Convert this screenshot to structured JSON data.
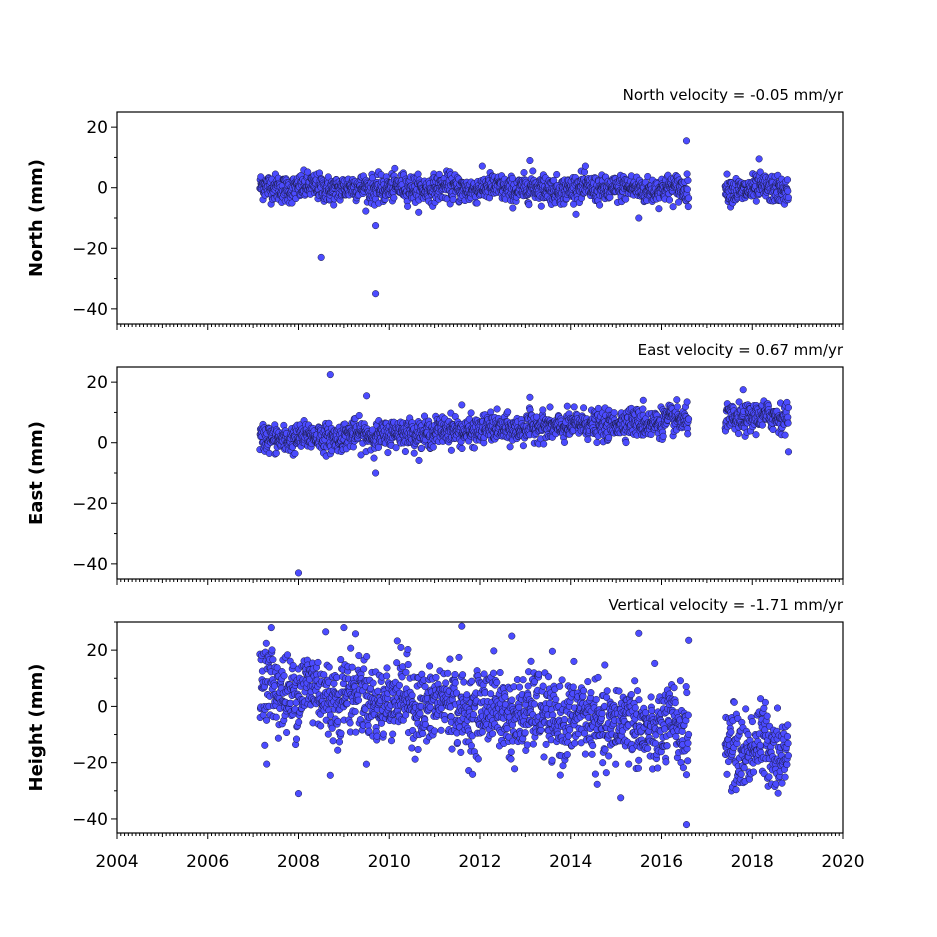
{
  "chart_data": {
    "type": "scatter",
    "x_range": [
      2004,
      2020
    ],
    "x_ticks": [
      "2004",
      "2006",
      "2008",
      "2010",
      "2012",
      "2014",
      "2016",
      "2018",
      "2020"
    ],
    "marker_color": "#4b4bff",
    "data_years": [
      2007.15,
      2018.8
    ],
    "data_gap": [
      2016.6,
      2017.4
    ],
    "panels": [
      {
        "id": "north",
        "ylabel": "North (mm)",
        "velocity_label": "North velocity = -0.05 mm/yr",
        "ylim": [
          -45,
          25
        ],
        "y_ticks": [
          "20",
          "0",
          "−20",
          "−40"
        ],
        "y_tick_values": [
          20,
          0,
          -20,
          -40
        ],
        "trend": {
          "start": 0,
          "slope": -0.05
        },
        "scatter": 2.2,
        "outliers": [
          [
            2008.5,
            -23
          ],
          [
            2009.7,
            -35
          ],
          [
            2009.7,
            -12.5
          ],
          [
            2016.55,
            15.5
          ],
          [
            2013.1,
            9
          ],
          [
            2018.15,
            9.5
          ],
          [
            2015.5,
            -10
          ]
        ]
      },
      {
        "id": "east",
        "ylabel": "East (mm)",
        "velocity_label": "East velocity = 0.67 mm/yr",
        "ylim": [
          -45,
          25
        ],
        "y_ticks": [
          "20",
          "0",
          "−20",
          "−40"
        ],
        "y_tick_values": [
          20,
          0,
          -20,
          -40
        ],
        "trend": {
          "start": 1,
          "slope": 0.67
        },
        "scatter": 2.3,
        "outliers": [
          [
            2008.0,
            -43
          ],
          [
            2008.7,
            22.5
          ],
          [
            2009.7,
            -10
          ],
          [
            2009.5,
            15.5
          ],
          [
            2017.8,
            17.5
          ],
          [
            2013.1,
            15
          ],
          [
            2011.6,
            12.5
          ],
          [
            2015.6,
            14
          ],
          [
            2018.8,
            -3
          ]
        ]
      },
      {
        "id": "height",
        "ylabel": "Height (mm)",
        "velocity_label": "Vertical velocity = -1.71 mm/yr",
        "ylim": [
          -45,
          30
        ],
        "y_ticks": [
          "20",
          "0",
          "−20",
          "−40"
        ],
        "y_tick_values": [
          20,
          0,
          -20,
          -40
        ],
        "trend": {
          "start": 7,
          "slope": -1.71
        },
        "scatter": 7.0,
        "outliers": [
          [
            2007.4,
            28
          ],
          [
            2009.0,
            28
          ],
          [
            2011.6,
            28.5
          ],
          [
            2008.0,
            -31
          ],
          [
            2008.7,
            -24.5
          ],
          [
            2007.3,
            -20.5
          ],
          [
            2015.1,
            -32.5
          ],
          [
            2016.55,
            -42
          ],
          [
            2016.6,
            23.5
          ],
          [
            2015.5,
            26
          ],
          [
            2012.7,
            25
          ],
          [
            2008.6,
            26.5
          ]
        ]
      }
    ]
  }
}
